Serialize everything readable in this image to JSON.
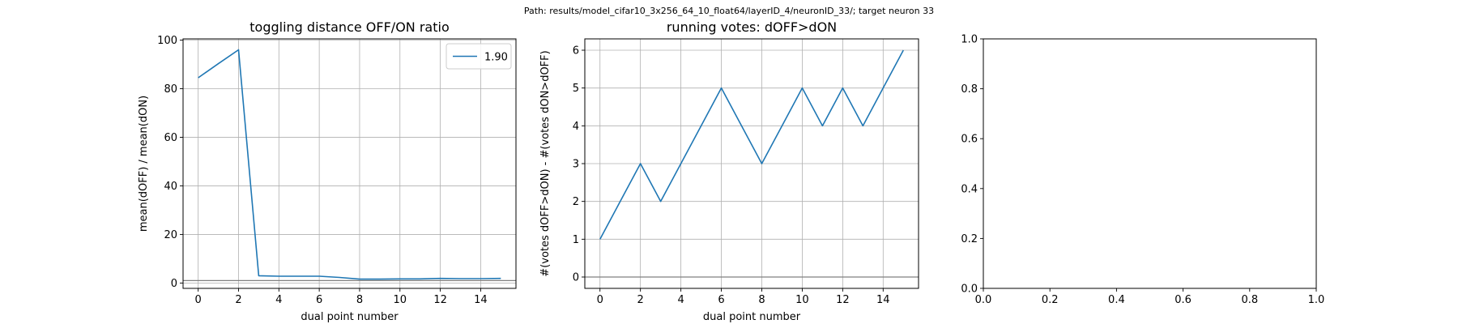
{
  "suptitle": "Path: results/model_cifar10_3x256_64_10_float64/layerID_4/neuronID_33/; target neuron 33",
  "colors": {
    "line": "#1f77b4",
    "grid": "#b0b0b0",
    "hline": "#808080"
  },
  "chart_data": [
    {
      "type": "line",
      "title": "toggling distance OFF/ON ratio",
      "xlabel": "dual point number",
      "ylabel": "mean(dOFF) / mean(dON)",
      "xlim": [
        -0.75,
        15.75
      ],
      "ylim": [
        -2.2,
        100.5
      ],
      "xticks": [
        0,
        2,
        4,
        6,
        8,
        10,
        12,
        14
      ],
      "yticks": [
        0,
        20,
        40,
        60,
        80,
        100
      ],
      "grid": true,
      "hline": 1,
      "legend": {
        "placement": "top-right",
        "entries": [
          "1.90"
        ]
      },
      "series": [
        {
          "name": "1.90",
          "x": [
            0,
            1,
            2,
            3,
            4,
            5,
            6,
            7,
            8,
            9,
            10,
            11,
            12,
            13,
            14,
            15
          ],
          "y": [
            84.5,
            90.3,
            96.0,
            3.0,
            2.8,
            2.8,
            2.8,
            2.3,
            1.6,
            1.6,
            1.7,
            1.7,
            1.9,
            1.8,
            1.8,
            1.9
          ]
        }
      ]
    },
    {
      "type": "line",
      "title": "running votes: dOFF>dON",
      "xlabel": "dual point number",
      "ylabel": "#(votes dOFF>dON) - #(votes dON>dOFF)",
      "xlim": [
        -0.75,
        15.75
      ],
      "ylim": [
        -0.3,
        6.3
      ],
      "xticks": [
        0,
        2,
        4,
        6,
        8,
        10,
        12,
        14
      ],
      "yticks": [
        0,
        1,
        2,
        3,
        4,
        5,
        6
      ],
      "grid": true,
      "hline": 0,
      "series": [
        {
          "x": [
            0,
            1,
            2,
            3,
            4,
            5,
            6,
            7,
            8,
            9,
            10,
            11,
            12,
            13,
            14,
            15
          ],
          "y": [
            1,
            2,
            3,
            2,
            3,
            4,
            5,
            4,
            3,
            4,
            5,
            4,
            5,
            4,
            5,
            6
          ]
        }
      ]
    },
    {
      "type": "line",
      "title": "",
      "xlim": [
        0,
        1
      ],
      "ylim": [
        0,
        1
      ],
      "xticks": [
        0.0,
        0.2,
        0.4,
        0.6,
        0.8,
        1.0
      ],
      "yticks": [
        0.0,
        0.2,
        0.4,
        0.6,
        0.8,
        1.0
      ],
      "xtick_labels": [
        "0.0",
        "0.2",
        "0.4",
        "0.6",
        "0.8",
        "1.0"
      ],
      "ytick_labels": [
        "0.0",
        "0.2",
        "0.4",
        "0.6",
        "0.8",
        "1.0"
      ],
      "grid": false,
      "series": []
    }
  ]
}
